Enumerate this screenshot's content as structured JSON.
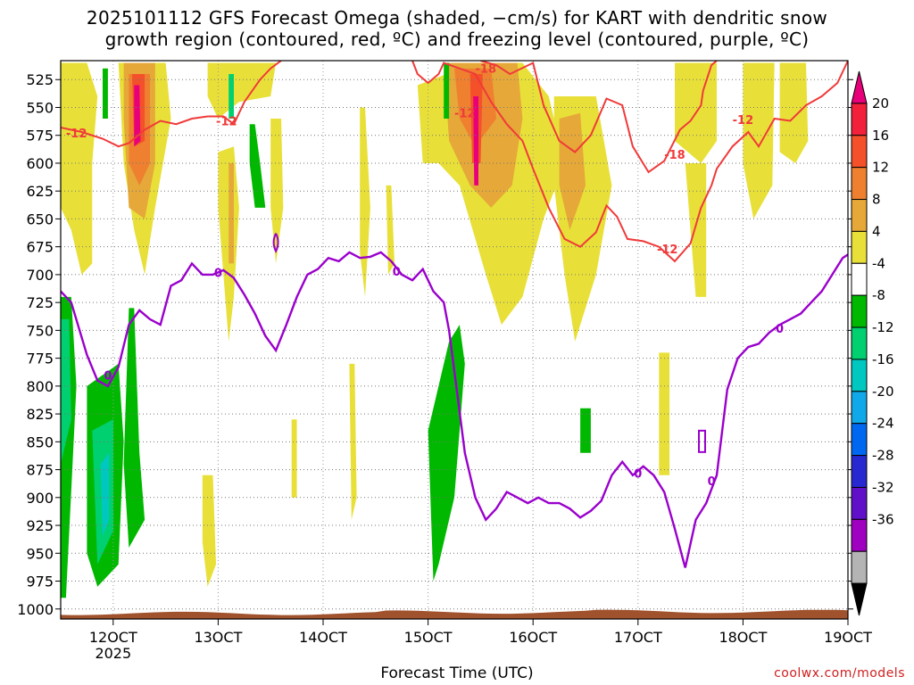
{
  "chart_data": {
    "type": "heatmap",
    "title_lines": [
      "2025101112 GFS Forecast Omega (shaded, −cm/s) for KART with dendritic snow",
      "growth region (contoured, red, ºC) and freezing level (contoured, purple, ºC)"
    ],
    "xlabel": "Forecast Time (UTC)",
    "x_ticks": [
      "12OCT",
      "13OCT",
      "14OCT",
      "15OCT",
      "16OCT",
      "17OCT",
      "18OCT",
      "19OCT"
    ],
    "x_sublabel": "2025",
    "x_range_days": [
      11.5,
      19.0
    ],
    "y_ticks": [
      525,
      550,
      575,
      600,
      625,
      650,
      675,
      700,
      725,
      750,
      775,
      800,
      825,
      850,
      875,
      900,
      925,
      950,
      975,
      1000
    ],
    "y_range_hpa": [
      508,
      1009
    ],
    "y_reversed": true,
    "grid": true,
    "colorbar": {
      "placement": "right",
      "labels": [
        20,
        16,
        12,
        8,
        4,
        -4,
        -8,
        -12,
        -16,
        -20,
        -24,
        -28,
        -32,
        -36
      ],
      "colors": [
        "#e8007a",
        "#f2203a",
        "#f4502a",
        "#ee8030",
        "#e6a838",
        "#e8e038",
        "#ffffff",
        "#00b800",
        "#00d070",
        "#00c8c0",
        "#10a8e8",
        "#0068f0",
        "#2828d0",
        "#6010c8",
        "#a000c0",
        "#b4b4b4",
        "#000000"
      ]
    },
    "red_contours": {
      "label": "-12 / -18 ºC",
      "series": [
        {
          "name": "-12",
          "points": [
            [
              11.5,
              568
            ],
            [
              11.7,
              572
            ],
            [
              11.9,
              578
            ],
            [
              12.05,
              585
            ],
            [
              12.15,
              582
            ],
            [
              12.3,
              570
            ],
            [
              12.45,
              562
            ],
            [
              12.6,
              565
            ],
            [
              12.75,
              560
            ],
            [
              12.9,
              558
            ],
            [
              13.05,
              558
            ],
            [
              13.15,
              565
            ],
            [
              13.25,
              545
            ],
            [
              13.4,
              525
            ],
            [
              13.5,
              515
            ],
            [
              13.6,
              508
            ]
          ]
        },
        {
          "name": "-12",
          "points": [
            [
              14.85,
              508
            ],
            [
              14.9,
              520
            ],
            [
              15.0,
              528
            ],
            [
              15.1,
              520
            ],
            [
              15.15,
              510
            ],
            [
              15.3,
              515
            ],
            [
              15.45,
              520
            ],
            [
              15.6,
              545
            ],
            [
              15.75,
              565
            ],
            [
              15.9,
              580
            ],
            [
              16.0,
              605
            ],
            [
              16.15,
              640
            ],
            [
              16.3,
              668
            ],
            [
              16.45,
              675
            ],
            [
              16.6,
              662
            ],
            [
              16.7,
              638
            ],
            [
              16.8,
              648
            ],
            [
              16.9,
              668
            ],
            [
              17.05,
              670
            ],
            [
              17.2,
              675
            ],
            [
              17.35,
              688
            ],
            [
              17.5,
              672
            ],
            [
              17.6,
              640
            ],
            [
              17.7,
              620
            ],
            [
              17.75,
              605
            ],
            [
              17.9,
              585
            ],
            [
              18.05,
              572
            ],
            [
              18.15,
              585
            ],
            [
              18.3,
              560
            ],
            [
              18.45,
              562
            ],
            [
              18.6,
              548
            ],
            [
              18.75,
              540
            ],
            [
              18.9,
              528
            ],
            [
              19.0,
              508
            ]
          ]
        },
        {
          "name": "-18",
          "points": [
            [
              15.5,
              508
            ],
            [
              15.65,
              512
            ],
            [
              15.78,
              520
            ],
            [
              16.0,
              510
            ],
            [
              16.1,
              548
            ],
            [
              16.25,
              580
            ],
            [
              16.4,
              590
            ],
            [
              16.55,
              575
            ],
            [
              16.7,
              542
            ],
            [
              16.85,
              548
            ],
            [
              16.95,
              585
            ],
            [
              17.1,
              608
            ],
            [
              17.25,
              598
            ],
            [
              17.4,
              570
            ],
            [
              17.5,
              562
            ],
            [
              17.6,
              548
            ],
            [
              17.62,
              535
            ],
            [
              17.7,
              512
            ],
            [
              17.75,
              508
            ]
          ]
        }
      ],
      "color": "#f03a3a",
      "labels": [
        {
          "text": "-12",
          "x": 11.65,
          "p": 573
        },
        {
          "text": "-12",
          "x": 13.08,
          "p": 562
        },
        {
          "text": "-12",
          "x": 15.35,
          "p": 555
        },
        {
          "text": "-18",
          "x": 15.55,
          "p": 515
        },
        {
          "text": "-18",
          "x": 17.35,
          "p": 592
        },
        {
          "text": "-12",
          "x": 17.28,
          "p": 677
        },
        {
          "text": "-12",
          "x": 18.0,
          "p": 561
        }
      ]
    },
    "purple_contour": {
      "name": "0",
      "color": "#9a00cc",
      "points": [
        [
          11.5,
          715
        ],
        [
          11.6,
          725
        ],
        [
          11.75,
          772
        ],
        [
          11.85,
          795
        ],
        [
          11.95,
          800
        ],
        [
          12.05,
          783
        ],
        [
          12.15,
          745
        ],
        [
          12.25,
          732
        ],
        [
          12.35,
          740
        ],
        [
          12.45,
          745
        ],
        [
          12.55,
          710
        ],
        [
          12.65,
          705
        ],
        [
          12.75,
          690
        ],
        [
          12.85,
          700
        ],
        [
          12.95,
          700
        ],
        [
          13.05,
          696
        ],
        [
          13.15,
          703
        ],
        [
          13.25,
          718
        ],
        [
          13.35,
          735
        ],
        [
          13.45,
          755
        ],
        [
          13.55,
          768
        ],
        [
          13.65,
          745
        ],
        [
          13.75,
          720
        ],
        [
          13.85,
          700
        ],
        [
          13.95,
          695
        ],
        [
          14.05,
          685
        ],
        [
          14.15,
          688
        ],
        [
          14.25,
          680
        ],
        [
          14.35,
          685
        ],
        [
          14.45,
          684
        ],
        [
          14.55,
          680
        ],
        [
          14.65,
          688
        ],
        [
          14.75,
          700
        ],
        [
          14.85,
          705
        ],
        [
          14.95,
          695
        ],
        [
          15.05,
          715
        ],
        [
          15.15,
          725
        ],
        [
          15.2,
          750
        ],
        [
          15.28,
          808
        ],
        [
          15.35,
          860
        ],
        [
          15.45,
          900
        ],
        [
          15.55,
          920
        ],
        [
          15.65,
          910
        ],
        [
          15.75,
          895
        ],
        [
          15.85,
          900
        ],
        [
          15.95,
          905
        ],
        [
          16.05,
          900
        ],
        [
          16.15,
          905
        ],
        [
          16.25,
          905
        ],
        [
          16.35,
          910
        ],
        [
          16.45,
          918
        ],
        [
          16.55,
          912
        ],
        [
          16.65,
          903
        ],
        [
          16.75,
          880
        ],
        [
          16.85,
          868
        ],
        [
          16.95,
          880
        ],
        [
          17.05,
          872
        ],
        [
          17.15,
          880
        ],
        [
          17.25,
          895
        ],
        [
          17.35,
          928
        ],
        [
          17.45,
          963
        ],
        [
          17.55,
          920
        ],
        [
          17.65,
          905
        ],
        [
          17.75,
          880
        ],
        [
          17.85,
          803
        ],
        [
          17.95,
          775
        ],
        [
          18.05,
          765
        ],
        [
          18.15,
          762
        ],
        [
          18.25,
          752
        ],
        [
          18.35,
          745
        ],
        [
          18.45,
          740
        ],
        [
          18.55,
          735
        ],
        [
          18.65,
          725
        ],
        [
          18.75,
          715
        ],
        [
          18.85,
          700
        ],
        [
          18.95,
          685
        ],
        [
          19.0,
          682
        ]
      ]
    },
    "freezing_labels": [
      {
        "text": "0",
        "x": 11.95,
        "p": 790
      },
      {
        "text": "0",
        "x": 13.0,
        "p": 698
      },
      {
        "text": "0",
        "x": 14.7,
        "p": 697
      },
      {
        "text": "0",
        "x": 17.0,
        "p": 878
      },
      {
        "text": "0",
        "x": 17.7,
        "p": 885
      },
      {
        "text": "0",
        "x": 18.35,
        "p": 748
      }
    ],
    "shaded_regions": [
      {
        "name": "positive-4-8",
        "value": 4
      },
      {
        "name": "positive-8-12",
        "value": 8
      },
      {
        "name": "positive-12-16",
        "value": 12
      },
      {
        "name": "positive-16-20",
        "value": 16
      },
      {
        "name": "positive-20",
        "value": 20
      },
      {
        "name": "negative-4-8",
        "value": -4
      },
      {
        "name": "negative-8-12",
        "value": -8
      },
      {
        "name": "negative-12-16",
        "value": -12
      }
    ],
    "terrain_color": "#a0522d"
  },
  "footer": {
    "credit": "coolwx.com/models"
  }
}
